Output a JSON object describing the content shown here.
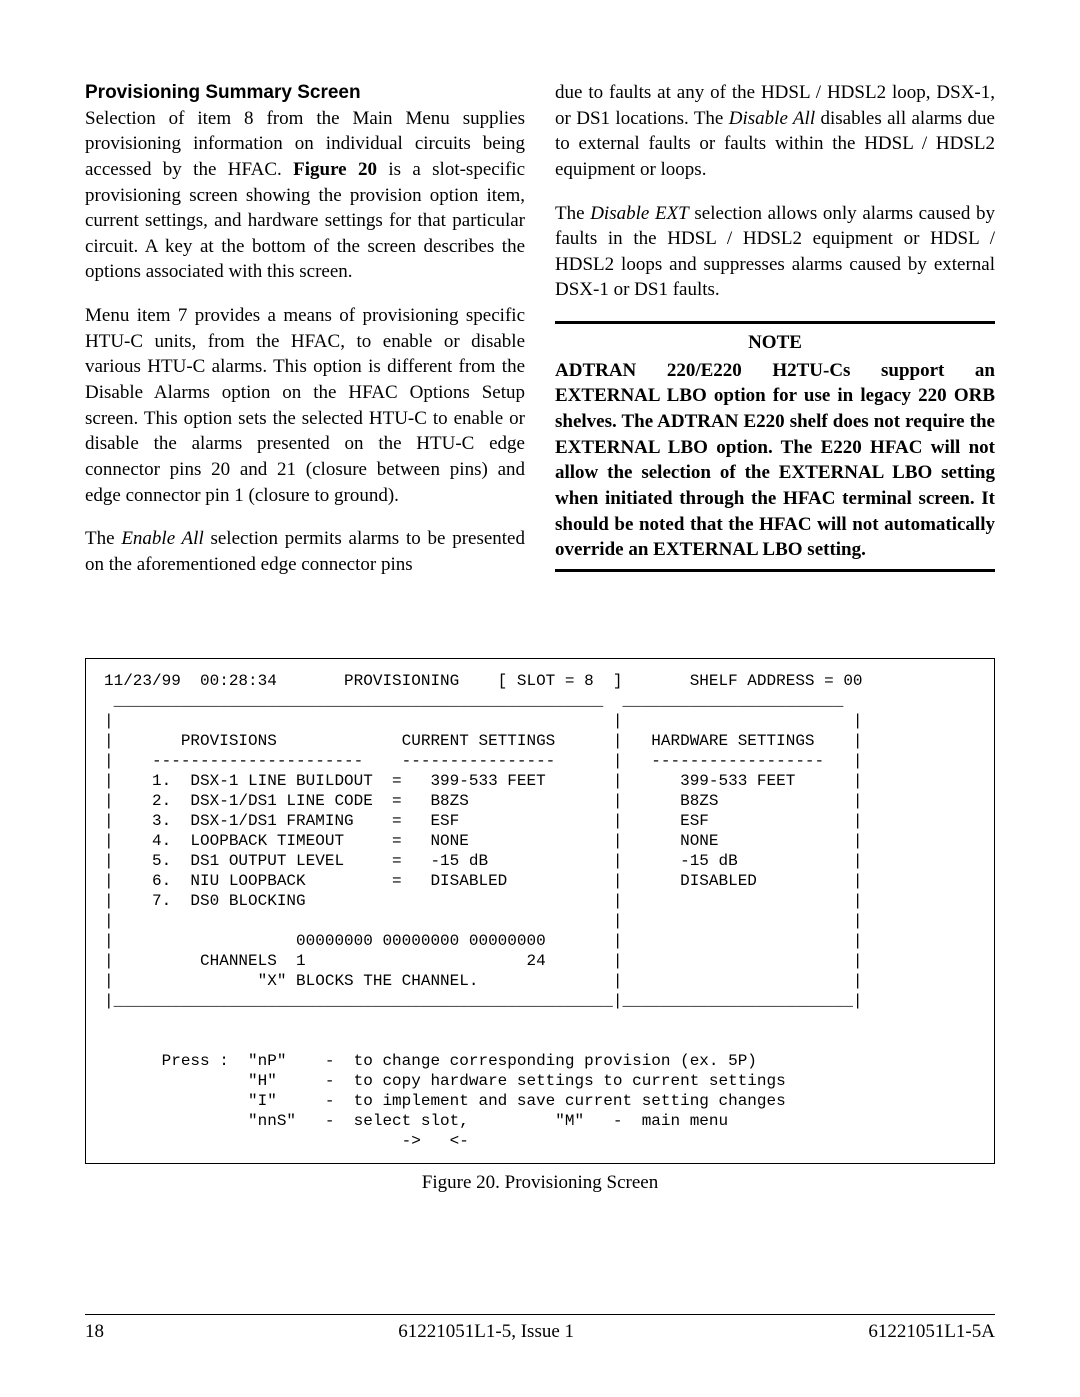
{
  "left": {
    "heading": "Provisioning Summary Screen",
    "p1a": "Selection of item 8 from the Main Menu supplies provisioning information on individual circuits being accessed by the HFAC.  ",
    "p1b_bold": "Figure 20",
    "p1c": " is a slot-specific provisioning screen showing the provision option item, current settings, and hardware settings for that particular circuit.  A key at the bottom of the screen describes the options associated with this screen.",
    "p2": "Menu item 7 provides a means of provisioning specific HTU-C units, from the HFAC, to enable or disable various HTU-C alarms.  This option is different from the Disable Alarms option on the HFAC Options Setup screen.  This option sets the selected HTU-C to enable or disable the alarms presented on the HTU-C edge connector pins 20 and 21 (closure between pins) and edge connector pin 1 (closure to ground).",
    "p3a": "The ",
    "p3b_em": "Enable All",
    "p3c": " selection permits alarms to be presented on the aforementioned edge connector pins"
  },
  "right": {
    "p1a": "due to faults at any of the HDSL / HDSL2 loop, DSX-1, or DS1 locations.  The ",
    "p1b_em": "Disable All",
    "p1c": " disables all alarms due to external faults or faults within the HDSL / HDSL2 equipment or loops.",
    "p2a": "The ",
    "p2b_em": "Disable EXT",
    "p2c": " selection allows only alarms caused by faults in the HDSL / HDSL2 equipment or HDSL / HDSL2 loops and suppresses alarms caused by external DSX-1 or DS1 faults.",
    "note_title": "NOTE",
    "note_body": "ADTRAN 220/E220 H2TU-Cs support an EXTERNAL LBO option for use in legacy 220 ORB shelves.  The ADTRAN E220 shelf does not require the EXTERNAL LBO option.  The E220 HFAC will not allow the selection of the EXTERNAL LBO setting when initiated through the HFAC terminal screen.  It should be noted that the HFAC will not automatically override an EXTERNAL LBO setting."
  },
  "terminal": {
    "text": "11/23/99  00:28:34       PROVISIONING    [ SLOT = 8  ]       SHELF ADDRESS = 00\n ___________________________________________________  _______________________\n|                                                    |                        |\n|       PROVISIONS             CURRENT SETTINGS      |   HARDWARE SETTINGS    |\n|    ----------------------    ----------------      |   ------------------   |\n|    1.  DSX-1 LINE BUILDOUT  =   399-533 FEET       |      399-533 FEET      |\n|    2.  DSX-1/DS1 LINE CODE  =   B8ZS               |      B8ZS              |\n|    3.  DSX-1/DS1 FRAMING    =   ESF                |      ESF               |\n|    4.  LOOPBACK TIMEOUT     =   NONE               |      NONE              |\n|    5.  DS1 OUTPUT LEVEL     =   -15 dB             |      -15 dB            |\n|    6.  NIU LOOPBACK         =   DISABLED           |      DISABLED          |\n|    7.  DS0 BLOCKING                                |                        |\n|                                                    |                        |\n|                   00000000 00000000 00000000       |                        |\n|         CHANNELS  1                       24       |                        |\n|               \"X\" BLOCKS THE CHANNEL.              |                        |\n|____________________________________________________|________________________|\n\n\n      Press :  \"nP\"    -  to change corresponding provision (ex. 5P)\n               \"H\"     -  to copy hardware settings to current settings\n               \"I\"     -  to implement and save current setting changes\n               \"nnS\"   -  select slot,         \"M\"   -  main menu\n                               ->   <-"
  },
  "figure_caption": "Figure 20.  Provisioning Screen",
  "footer": {
    "page": "18",
    "center": "61221051L1-5, Issue 1",
    "right": "61221051L1-5A"
  }
}
